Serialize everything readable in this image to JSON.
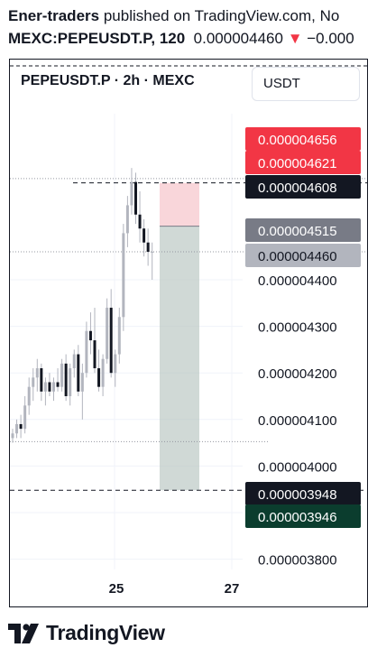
{
  "header": {
    "author": "Ener-traders",
    "published_text": "published on TradingView.com, No",
    "symbol_interval": "MEXC:PEPEUSDT.P, 120",
    "last_price": "0.000004460",
    "change_arrow": "▼",
    "change": "−0.000",
    "change_color": "#f23645"
  },
  "chart_title": "PEPEUSDT.P · 2h · MEXC",
  "currency": "USDT",
  "footer": {
    "brand": "TradingView"
  },
  "chart_data": {
    "type": "candlestick",
    "y_ticks": [
      4.4e-06,
      4.3e-06,
      4.2e-06,
      4.1e-06,
      4e-06,
      3.9e-06,
      3.8e-06
    ],
    "y_tick_labels": [
      "0.000004400",
      "0.000004300",
      "0.000004200",
      "0.000004100",
      "0.000004000",
      "0.000003900",
      "0.000003800"
    ],
    "x_tick_labels": [
      "25",
      "27"
    ],
    "price_labels": [
      {
        "value": 4.656e-06,
        "text": "0.000004656",
        "bg": "#f23645",
        "fg": "#ffffff"
      },
      {
        "value": 4.621e-06,
        "text": "0.000004621",
        "bg": "#f23645",
        "fg": "#ffffff"
      },
      {
        "value": 4.608e-06,
        "text": "0.000004608",
        "bg": "#131722",
        "fg": "#ffffff"
      },
      {
        "value": 4.515e-06,
        "text": "0.000004515",
        "bg": "#787b86",
        "fg": "#ffffff"
      },
      {
        "value": 4.46e-06,
        "text": "0.000004460",
        "bg": "#b2b5be",
        "fg": "#131722"
      },
      {
        "value": 3.948e-06,
        "text": "0.000003948",
        "bg": "#131722",
        "fg": "#ffffff"
      },
      {
        "value": 3.946e-06,
        "text": "0.000003946",
        "bg": "#0b3d2e",
        "fg": "#ffffff"
      }
    ],
    "position": {
      "type": "short",
      "stop": 4.608e-06,
      "entry": 4.515e-06,
      "target": 3.948e-06,
      "stop_color": "#f7c5cb",
      "target_color": "#b7c4c0"
    },
    "candles": [
      [
        4.06e-06,
        4.08e-06,
        4.05e-06,
        4.07e-06
      ],
      [
        4.07e-06,
        4.1e-06,
        4.06e-06,
        4.09e-06
      ],
      [
        4.09e-06,
        4.11e-06,
        4.06e-06,
        4.08e-06
      ],
      [
        4.08e-06,
        4.15e-06,
        4.07e-06,
        4.13e-06
      ],
      [
        4.13e-06,
        4.19e-06,
        4.11e-06,
        4.17e-06
      ],
      [
        4.17e-06,
        4.21e-06,
        4.14e-06,
        4.19e-06
      ],
      [
        4.19e-06,
        4.23e-06,
        4.16e-06,
        4.21e-06
      ],
      [
        4.21e-06,
        4.22e-06,
        4.14e-06,
        4.16e-06
      ],
      [
        4.16e-06,
        4.19e-06,
        4.13e-06,
        4.18e-06
      ],
      [
        4.18e-06,
        4.2e-06,
        4.15e-06,
        4.16e-06
      ],
      [
        4.16e-06,
        4.19e-06,
        4.14e-06,
        4.18e-06
      ],
      [
        4.18e-06,
        4.21e-06,
        4.16e-06,
        4.17e-06
      ],
      [
        4.17e-06,
        4.23e-06,
        4.16e-06,
        4.22e-06
      ],
      [
        4.22e-06,
        4.24e-06,
        4.14e-06,
        4.15e-06
      ],
      [
        4.15e-06,
        4.22e-06,
        4.13e-06,
        4.21e-06
      ],
      [
        4.21e-06,
        4.25e-06,
        4.19e-06,
        4.24e-06
      ],
      [
        4.24e-06,
        4.26e-06,
        4.15e-06,
        4.16e-06
      ],
      [
        4.16e-06,
        4.22e-06,
        4.1e-06,
        4.2e-06
      ],
      [
        4.2e-06,
        4.31e-06,
        4.19e-06,
        4.29e-06
      ],
      [
        4.29e-06,
        4.33e-06,
        4.24e-06,
        4.27e-06
      ],
      [
        4.27e-06,
        4.34e-06,
        4.2e-06,
        4.21e-06
      ],
      [
        4.21e-06,
        4.25e-06,
        4.16e-06,
        4.17e-06
      ],
      [
        4.17e-06,
        4.24e-06,
        4.15e-06,
        4.23e-06
      ],
      [
        4.23e-06,
        4.36e-06,
        4.22e-06,
        4.34e-06
      ],
      [
        4.34e-06,
        4.38e-06,
        4.19e-06,
        4.2e-06
      ],
      [
        4.2e-06,
        4.25e-06,
        4.17e-06,
        4.24e-06
      ],
      [
        4.24e-06,
        4.34e-06,
        4.22e-06,
        4.32e-06
      ],
      [
        4.32e-06,
        4.52e-06,
        4.29e-06,
        4.5e-06
      ],
      [
        4.5e-06,
        4.58e-06,
        4.47e-06,
        4.56e-06
      ],
      [
        4.56e-06,
        4.64e-06,
        4.54e-06,
        4.61e-06
      ],
      [
        4.61e-06,
        4.63e-06,
        4.52e-06,
        4.54e-06
      ],
      [
        4.54e-06,
        4.59e-06,
        4.48e-06,
        4.51e-06
      ],
      [
        4.51e-06,
        4.53e-06,
        4.45e-06,
        4.48e-06
      ],
      [
        4.48e-06,
        4.51e-06,
        4.43e-06,
        4.46e-06
      ],
      [
        4.46e-06,
        4.48e-06,
        4.4e-06,
        4.46e-06
      ]
    ]
  }
}
